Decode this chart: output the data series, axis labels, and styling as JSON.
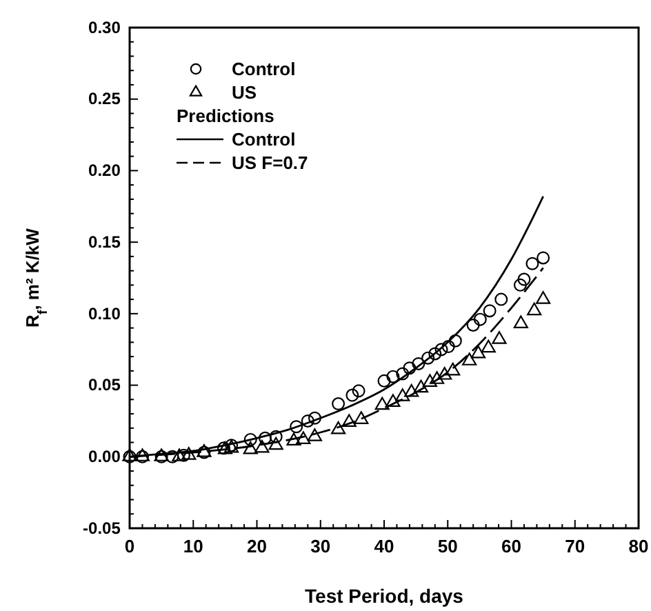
{
  "chart_data": {
    "type": "scatter",
    "xlabel": "Test Period, days",
    "ylabel": "R$_{f}$, m² K/kW",
    "xlim": [
      0,
      80
    ],
    "ylim": [
      -0.05,
      0.3
    ],
    "xticks": [
      0,
      {
        "value": 2,
        "label": null
      },
      {
        "value": 4,
        "label": null
      },
      {
        "value": 6,
        "label": null
      },
      {
        "value": 8,
        "label": null
      },
      10,
      {
        "value": 12,
        "label": null
      },
      {
        "value": 14,
        "label": null
      },
      {
        "value": 16,
        "label": null
      },
      {
        "value": 18,
        "label": null
      },
      20,
      {
        "value": 22,
        "label": null
      },
      {
        "value": 24,
        "label": null
      },
      {
        "value": 26,
        "label": null
      },
      {
        "value": 28,
        "label": null
      },
      30,
      {
        "value": 32,
        "label": null
      },
      {
        "value": 34,
        "label": null
      },
      {
        "value": 36,
        "label": null
      },
      {
        "value": 38,
        "label": null
      },
      40,
      {
        "value": 42,
        "label": null
      },
      {
        "value": 44,
        "label": null
      },
      {
        "value": 46,
        "label": null
      },
      {
        "value": 48,
        "label": null
      },
      50,
      {
        "value": 52,
        "label": null
      },
      {
        "value": 54,
        "label": null
      },
      {
        "value": 56,
        "label": null
      },
      {
        "value": 58,
        "label": null
      },
      60,
      {
        "value": 62,
        "label": null
      },
      {
        "value": 64,
        "label": null
      },
      {
        "value": 66,
        "label": null
      },
      {
        "value": 68,
        "label": null
      },
      70,
      {
        "value": 72,
        "label": null
      },
      {
        "value": 74,
        "label": null
      },
      {
        "value": 76,
        "label": null
      },
      {
        "value": 78,
        "label": null
      },
      80
    ],
    "yticks": [
      {
        "value": -0.05,
        "label": "-0.05"
      },
      {
        "value": -0.04,
        "label": null
      },
      {
        "value": -0.03,
        "label": null
      },
      {
        "value": -0.02,
        "label": null
      },
      {
        "value": -0.01,
        "label": null
      },
      {
        "value": 0,
        "label": "0.00"
      },
      {
        "value": 0.01,
        "label": null
      },
      {
        "value": 0.02,
        "label": null
      },
      {
        "value": 0.03,
        "label": null
      },
      {
        "value": 0.04,
        "label": null
      },
      {
        "value": 0.05,
        "label": "0.05"
      },
      {
        "value": 0.06,
        "label": null
      },
      {
        "value": 0.07,
        "label": null
      },
      {
        "value": 0.08,
        "label": null
      },
      {
        "value": 0.09,
        "label": null
      },
      {
        "value": 0.1,
        "label": "0.10"
      },
      {
        "value": 0.11,
        "label": null
      },
      {
        "value": 0.12,
        "label": null
      },
      {
        "value": 0.13,
        "label": null
      },
      {
        "value": 0.14,
        "label": null
      },
      {
        "value": 0.15,
        "label": "0.15"
      },
      {
        "value": 0.16,
        "label": null
      },
      {
        "value": 0.17,
        "label": null
      },
      {
        "value": 0.18,
        "label": null
      },
      {
        "value": 0.19,
        "label": null
      },
      {
        "value": 0.2,
        "label": "0.20"
      },
      {
        "value": 0.21,
        "label": null
      },
      {
        "value": 0.22,
        "label": null
      },
      {
        "value": 0.23,
        "label": null
      },
      {
        "value": 0.24,
        "label": null
      },
      {
        "value": 0.25,
        "label": "0.25"
      },
      {
        "value": 0.26,
        "label": null
      },
      {
        "value": 0.27,
        "label": null
      },
      {
        "value": 0.28,
        "label": null
      },
      {
        "value": 0.29,
        "label": null
      },
      {
        "value": 0.3,
        "label": "0.30"
      }
    ],
    "grid": false,
    "legend": "top left",
    "annotations": [
      "Predictions"
    ],
    "series": [
      {
        "name": "Control",
        "marker": "circle",
        "color": "#000000",
        "x": [
          0,
          2,
          5,
          6.7,
          8.5,
          11.7,
          14.8,
          16,
          19,
          21.3,
          23,
          26.2,
          28,
          29.1,
          32.8,
          35,
          36,
          40,
          41.4,
          42.9,
          44,
          45.4,
          46.9,
          48,
          49,
          50.1,
          51.2,
          54,
          55.1,
          56.6,
          58.4,
          61.4,
          62,
          63.3,
          65
        ],
        "values": [
          0,
          0,
          0,
          0,
          0.001,
          0.003,
          0.006,
          0.008,
          0.012,
          0.013,
          0.014,
          0.021,
          0.025,
          0.027,
          0.037,
          0.043,
          0.046,
          0.053,
          0.056,
          0.058,
          0.062,
          0.065,
          0.069,
          0.072,
          0.075,
          0.077,
          0.081,
          0.092,
          0.096,
          0.102,
          0.11,
          0.12,
          0.124,
          0.135,
          0.139
        ]
      },
      {
        "name": "US",
        "marker": "triangle",
        "color": "#000000",
        "x": [
          0,
          2,
          5,
          7.8,
          9.3,
          11.7,
          15,
          16,
          19,
          20.8,
          23,
          25.8,
          27.3,
          29.1,
          32.8,
          34.5,
          36.4,
          39.7,
          41.4,
          42.9,
          44.3,
          45.8,
          47.2,
          48.3,
          49.5,
          50.8,
          53.4,
          54.8,
          56.4,
          58.1,
          61.5,
          63.6,
          65
        ],
        "values": [
          0,
          0,
          0,
          0,
          0.001,
          0.003,
          0.005,
          0.006,
          0.005,
          0.006,
          0.008,
          0.011,
          0.012,
          0.014,
          0.019,
          0.024,
          0.026,
          0.036,
          0.038,
          0.042,
          0.045,
          0.048,
          0.052,
          0.054,
          0.057,
          0.06,
          0.067,
          0.072,
          0.076,
          0.082,
          0.093,
          0.102,
          0.11
        ]
      },
      {
        "name": "Control",
        "type": "line",
        "line_style": "solid",
        "color": "#000000",
        "x": [
          0,
          5,
          10,
          15,
          20,
          25,
          30,
          35,
          40,
          45,
          50,
          55,
          60,
          65
        ],
        "values": [
          0,
          0.002,
          0.004,
          0.008,
          0.013,
          0.019,
          0.027,
          0.036,
          0.047,
          0.062,
          0.08,
          0.104,
          0.138,
          0.182
        ]
      },
      {
        "name": "US F=0.7",
        "type": "line",
        "line_style": "dashed",
        "color": "#000000",
        "x": [
          0,
          10,
          20,
          30,
          35,
          40,
          45,
          50,
          55,
          60,
          65
        ],
        "values": [
          0,
          0.003,
          0.008,
          0.017,
          0.024,
          0.034,
          0.045,
          0.059,
          0.079,
          0.104,
          0.132
        ]
      }
    ]
  }
}
